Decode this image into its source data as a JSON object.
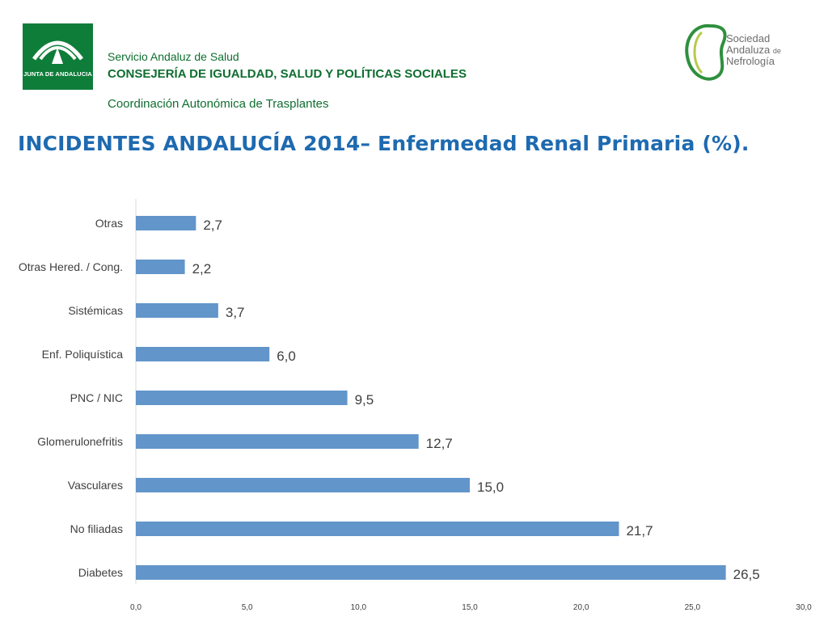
{
  "header": {
    "logo_left_text": "JUNTA DE ANDALUCIA",
    "line1": "Servicio Andaluz de Salud",
    "line2": "CONSEJERÍA DE IGUALDAD, SALUD Y POLÍTICAS SOCIALES",
    "line3": "Coordinación Autonómica de Trasplantes",
    "logo_right_line1": "Sociedad",
    "logo_right_line2": "Andaluza",
    "logo_right_de": "de",
    "logo_right_line3": "Nefrología"
  },
  "title": "INCIDENTES ANDALUCÍA 2014– Enfermedad Renal Primaria (%).",
  "colors": {
    "bar": "#6295ca",
    "brand_green": "#0f7d3a",
    "title_blue": "#1e6ab0"
  },
  "chart_data": {
    "type": "bar",
    "orientation": "horizontal",
    "categories": [
      "Otras",
      "Otras Hered. / Cong.",
      "Sistémicas",
      "Enf. Poliquística",
      "PNC / NIC",
      "Glomerulonefritis",
      "Vasculares",
      "No filiadas",
      "Diabetes"
    ],
    "values": [
      2.7,
      2.2,
      3.7,
      6.0,
      9.5,
      12.7,
      15.0,
      21.7,
      26.5
    ],
    "value_labels": [
      "2,7",
      "2,2",
      "3,7",
      "6,0",
      "9,5",
      "12,7",
      "15,0",
      "21,7",
      "26,5"
    ],
    "xlim": [
      0,
      30
    ],
    "xticks": [
      "0,0",
      "5,0",
      "10,0",
      "15,0",
      "20,0",
      "25,0",
      "30,0"
    ],
    "grid": false,
    "legend": "none"
  }
}
